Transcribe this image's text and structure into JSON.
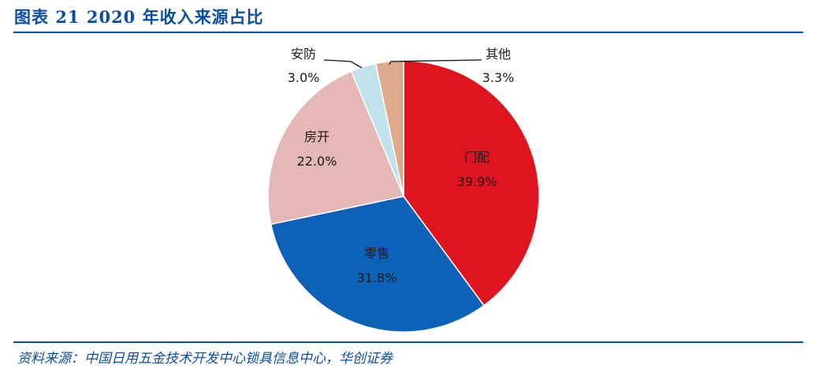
{
  "title": "图表 21    2020 年收入来源占比",
  "source": "资料来源：中国日用五金技术开发中心锁具信息中心，华创证券",
  "chart_data": {
    "type": "pie",
    "slices": [
      {
        "name": "门配",
        "value": 39.9,
        "label": "39.9%",
        "color": "#e0141e"
      },
      {
        "name": "零售",
        "value": 31.8,
        "label": "31.8%",
        "color": "#0d62b8"
      },
      {
        "name": "房开",
        "value": 22.0,
        "label": "22.0%",
        "color": "#e5b7b6"
      },
      {
        "name": "安防",
        "value": 3.0,
        "label": "3.0%",
        "color": "#bfe2ec"
      },
      {
        "name": "其他",
        "value": 3.3,
        "label": "3.3%",
        "color": "#ddab8b"
      }
    ],
    "start": "12 o'clock",
    "direction": "clockwise"
  }
}
